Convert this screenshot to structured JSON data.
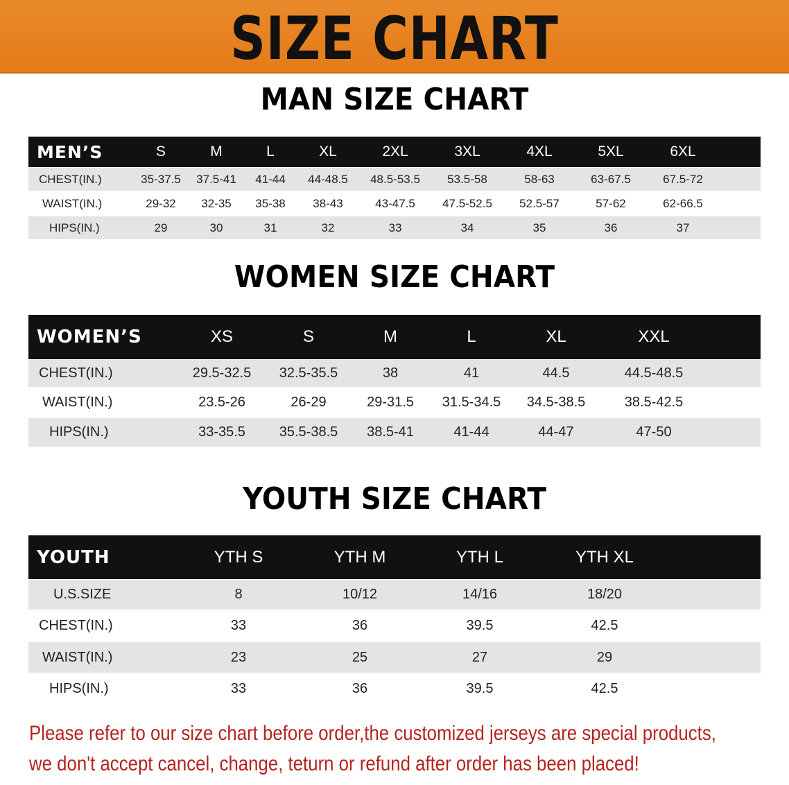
{
  "banner": {
    "title": "SIZE CHART",
    "color": "#e8821f"
  },
  "tables": [
    {
      "title": "MAN SIZE CHART",
      "header_label": "MEN’S",
      "sizes": [
        "S",
        "M",
        "L",
        "XL",
        "2XL",
        "3XL",
        "4XL",
        "5XL",
        "6XL"
      ],
      "rows": [
        {
          "label": "CHEST(IN.)",
          "values": [
            "35-37.5",
            "37.5-41",
            "41-44",
            "44-48.5",
            "48.5-53.5",
            "53.5-58",
            "58-63",
            "63-67.5",
            "67.5-72"
          ]
        },
        {
          "label": "WAIST(IN.)",
          "values": [
            "29-32",
            "32-35",
            "35-38",
            "38-43",
            "43-47.5",
            "47.5-52.5",
            "52.5-57",
            "57-62",
            "62-66.5"
          ]
        },
        {
          "label": "HIPS(IN.)",
          "values": [
            "29",
            "30",
            "31",
            "32",
            "33",
            "34",
            "35",
            "36",
            "37"
          ]
        }
      ]
    },
    {
      "title": "WOMEN SIZE CHART",
      "header_label": "WOMEN’S",
      "sizes": [
        "XS",
        "S",
        "M",
        "L",
        "XL",
        "XXL"
      ],
      "rows": [
        {
          "label": "CHEST(IN.)",
          "values": [
            "29.5-32.5",
            "32.5-35.5",
            "38",
            "41",
            "44.5",
            "44.5-48.5"
          ]
        },
        {
          "label": "WAIST(IN.)",
          "values": [
            "23.5-26",
            "26-29",
            "29-31.5",
            "31.5-34.5",
            "34.5-38.5",
            "38.5-42.5"
          ]
        },
        {
          "label": "HIPS(IN.)",
          "values": [
            "33-35.5",
            "35.5-38.5",
            "38.5-41",
            "41-44",
            "44-47",
            "47-50"
          ]
        }
      ]
    },
    {
      "title": "YOUTH SIZE CHART",
      "header_label": "YOUTH",
      "sizes": [
        "YTH S",
        "YTH M",
        "YTH L",
        "YTH XL"
      ],
      "rows": [
        {
          "label": "U.S.SIZE",
          "values": [
            "8",
            "10/12",
            "14/16",
            "18/20"
          ]
        },
        {
          "label": "CHEST(IN.)",
          "values": [
            "33",
            "36",
            "39.5",
            "42.5"
          ]
        },
        {
          "label": "WAIST(IN.)",
          "values": [
            "23",
            "25",
            "27",
            "29"
          ]
        },
        {
          "label": "HIPS(IN.)",
          "values": [
            "33",
            "36",
            "39.5",
            "42.5"
          ]
        }
      ]
    }
  ],
  "notice": {
    "line1": "Please refer to our size chart before order,the customized jerseys are special products,",
    "line2": "we don't accept cancel, change, teturn or refund after order has been placed!",
    "color": "#b5231f"
  }
}
